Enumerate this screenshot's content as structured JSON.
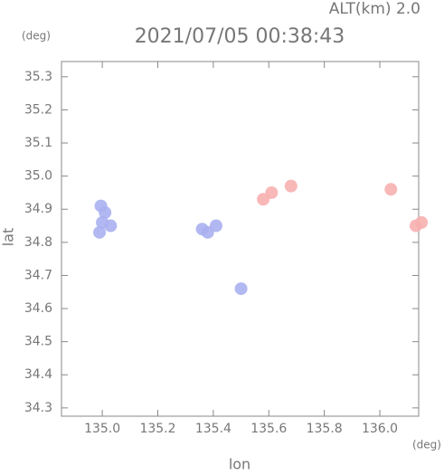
{
  "chart_data": {
    "type": "scatter",
    "header": "ALT(km) 2.0",
    "title": "2021/07/05 00:38:43",
    "y_unit": "(deg)",
    "x_unit": "(deg)",
    "ylabel": "lat",
    "xlabel": "lon",
    "xlim": [
      134.853,
      136.14
    ],
    "ylim": [
      34.275,
      35.346
    ],
    "xticks": [
      {
        "value": 135.0,
        "label": "135.0"
      },
      135.2,
      135.4,
      135.6,
      135.8,
      {
        "value": 136.0,
        "label": "136.0"
      }
    ],
    "yticks": [
      34.3,
      34.4,
      34.5,
      34.6,
      34.7,
      34.8,
      34.9,
      {
        "value": 35.0,
        "label": "35.0"
      },
      35.1,
      35.2,
      35.3
    ],
    "series": [
      {
        "color": "#aab0f0",
        "x": [
          134.99,
          135.0,
          135.01,
          134.995,
          135.03,
          135.36,
          135.38,
          135.41,
          135.5
        ],
        "values": [
          34.83,
          34.86,
          34.89,
          34.91,
          34.85,
          34.84,
          34.83,
          34.85,
          34.66
        ]
      },
      {
        "color": "#f7b0b0",
        "x": [
          135.58,
          135.61,
          135.68,
          136.04,
          136.13,
          136.15
        ],
        "values": [
          34.93,
          34.95,
          34.97,
          34.96,
          34.85,
          34.86
        ]
      }
    ]
  }
}
